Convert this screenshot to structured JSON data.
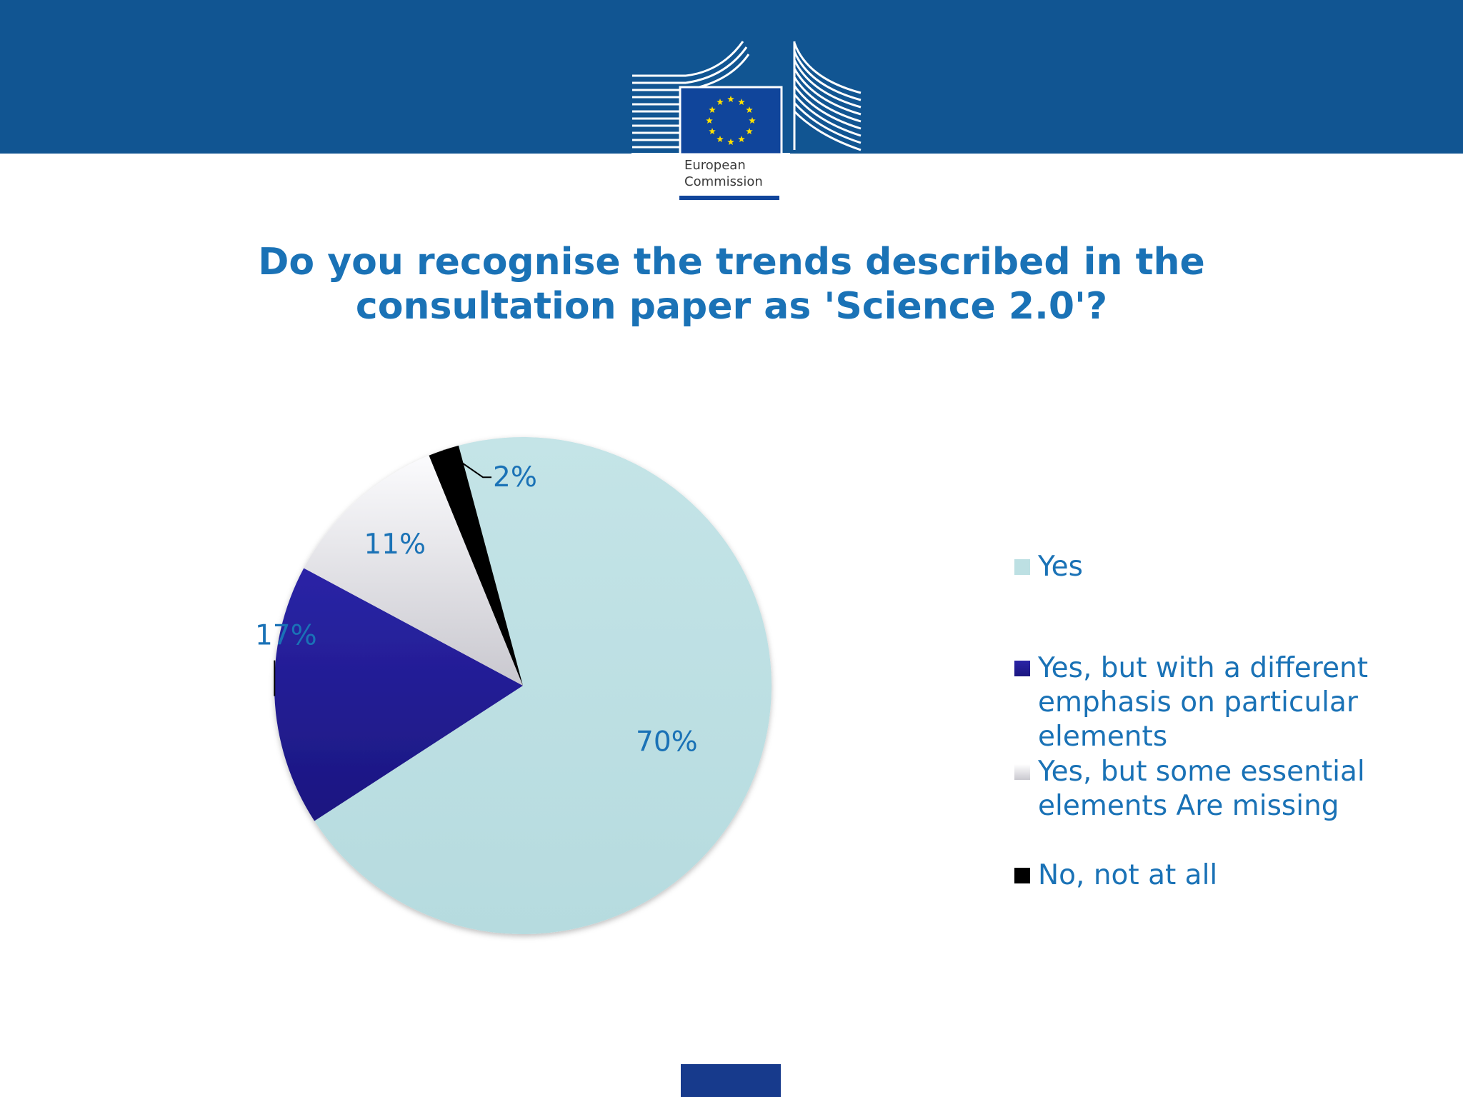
{
  "colors": {
    "header": "#115592",
    "accent_text": "#1a72b6",
    "logo_blue": "#10459b",
    "star_yellow": "#ffe000",
    "footer_block": "#173a8c"
  },
  "logo": {
    "line1": "European",
    "line2": "Commission"
  },
  "title": "Do you recognise the trends described in the consultation paper as 'Science 2.0'?",
  "chart_data": {
    "type": "pie",
    "title": "Do you recognise the trends described in the consultation paper as 'Science 2.0'?",
    "start_angle_deg": -105,
    "legend_position": "right",
    "series": [
      {
        "name": "Yes",
        "value": 70,
        "label": "70%",
        "color": "#bde0e3"
      },
      {
        "name": "Yes, but with a different emphasis on particular elements",
        "value": 17,
        "label": "17%",
        "color": "#241f9c"
      },
      {
        "name": "Yes, but some essential elements Are missing",
        "value": 11,
        "label": "11%",
        "color": "#e6e5ea"
      },
      {
        "name": "No, not at all",
        "value": 2,
        "label": "2%",
        "color": "#000000"
      }
    ]
  }
}
